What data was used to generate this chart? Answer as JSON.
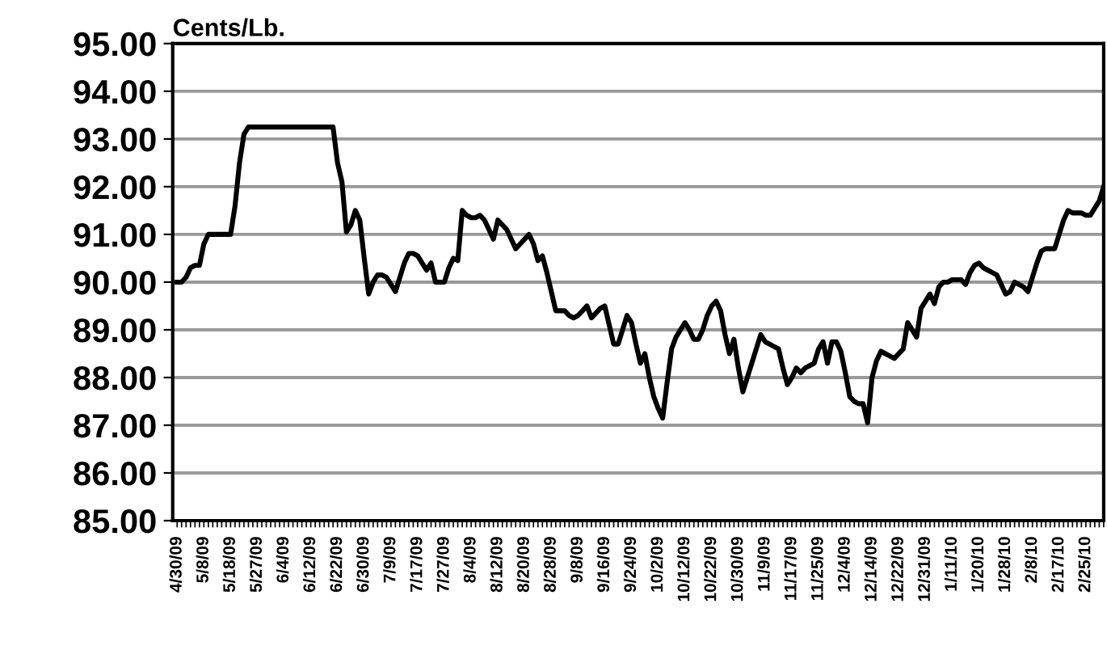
{
  "chart_data": {
    "type": "line",
    "ylabel": "Cents/Lb.",
    "categories": [
      "4/30/09",
      null,
      null,
      null,
      null,
      null,
      "5/8/09",
      null,
      null,
      null,
      null,
      null,
      "5/18/09",
      null,
      null,
      null,
      null,
      null,
      "5/27/09",
      null,
      null,
      null,
      null,
      null,
      "6/4/09",
      null,
      null,
      null,
      null,
      null,
      "6/12/09",
      null,
      null,
      null,
      null,
      null,
      "6/22/09",
      null,
      null,
      null,
      null,
      null,
      "6/30/09",
      null,
      null,
      null,
      null,
      null,
      "7/9/09",
      null,
      null,
      null,
      null,
      null,
      "7/17/09",
      null,
      null,
      null,
      null,
      null,
      "7/27/09",
      null,
      null,
      null,
      null,
      null,
      "8/4/09",
      null,
      null,
      null,
      null,
      null,
      "8/12/09",
      null,
      null,
      null,
      null,
      null,
      "8/20/09",
      null,
      null,
      null,
      null,
      null,
      "8/28/09",
      null,
      null,
      null,
      null,
      null,
      "9/8/09",
      null,
      null,
      null,
      null,
      null,
      "9/16/09",
      null,
      null,
      null,
      null,
      null,
      "9/24/09",
      null,
      null,
      null,
      null,
      null,
      "10/2/09",
      null,
      null,
      null,
      null,
      null,
      "10/12/09",
      null,
      null,
      null,
      null,
      null,
      "10/22/09",
      null,
      null,
      null,
      null,
      null,
      "10/30/09",
      null,
      null,
      null,
      null,
      null,
      "11/9/09",
      null,
      null,
      null,
      null,
      null,
      "11/17/09",
      null,
      null,
      null,
      null,
      null,
      "11/25/09",
      null,
      null,
      null,
      null,
      null,
      "12/4/09",
      null,
      null,
      null,
      null,
      null,
      "12/14/09",
      null,
      null,
      null,
      null,
      null,
      "12/22/09",
      null,
      null,
      null,
      null,
      null,
      "12/31/09",
      null,
      null,
      null,
      null,
      null,
      "1/11/10",
      null,
      null,
      null,
      null,
      null,
      "1/20/10",
      null,
      null,
      null,
      null,
      null,
      "1/28/10",
      null,
      null,
      null,
      null,
      null,
      "2/8/10",
      null,
      null,
      null,
      null,
      null,
      "2/17/10",
      null,
      null,
      null,
      null,
      null,
      "2/25/10",
      null,
      null,
      null,
      null
    ],
    "series": [
      {
        "color": "#000000",
        "values": [
          90.0,
          90.0,
          90.1,
          90.3,
          90.35,
          90.35,
          90.8,
          91.0,
          91.0,
          91.0,
          91.0,
          91.0,
          91.0,
          91.6,
          92.5,
          93.1,
          93.25,
          93.25,
          93.25,
          93.25,
          93.25,
          93.25,
          93.25,
          93.25,
          93.25,
          93.25,
          93.25,
          93.25,
          93.25,
          93.25,
          93.25,
          93.25,
          93.25,
          93.25,
          93.25,
          93.25,
          92.5,
          92.1,
          91.05,
          91.2,
          91.5,
          91.3,
          90.5,
          89.75,
          90.0,
          90.15,
          90.15,
          90.1,
          89.95,
          89.8,
          90.1,
          90.4,
          90.6,
          90.6,
          90.55,
          90.4,
          90.25,
          90.4,
          90.0,
          90.0,
          90.0,
          90.3,
          90.5,
          90.45,
          91.5,
          91.4,
          91.35,
          91.35,
          91.4,
          91.3,
          91.1,
          90.9,
          91.3,
          91.2,
          91.1,
          90.9,
          90.7,
          90.8,
          90.9,
          91.0,
          90.8,
          90.45,
          90.55,
          90.2,
          89.8,
          89.4,
          89.4,
          89.4,
          89.3,
          89.25,
          89.3,
          89.4,
          89.5,
          89.25,
          89.35,
          89.45,
          89.5,
          89.1,
          88.7,
          88.7,
          89.0,
          89.3,
          89.15,
          88.7,
          88.3,
          88.5,
          88.0,
          87.6,
          87.35,
          87.15,
          87.9,
          88.6,
          88.85,
          89.0,
          89.15,
          89.0,
          88.8,
          88.8,
          89.0,
          89.3,
          89.5,
          89.6,
          89.4,
          88.9,
          88.5,
          88.8,
          88.2,
          87.7,
          88.0,
          88.3,
          88.6,
          88.9,
          88.75,
          88.7,
          88.65,
          88.6,
          88.2,
          87.85,
          88.0,
          88.2,
          88.1,
          88.2,
          88.25,
          88.3,
          88.6,
          88.75,
          88.3,
          88.75,
          88.75,
          88.55,
          88.1,
          87.6,
          87.5,
          87.45,
          87.45,
          87.05,
          88.0,
          88.35,
          88.55,
          88.5,
          88.45,
          88.4,
          88.5,
          88.6,
          89.15,
          89.0,
          88.85,
          89.45,
          89.6,
          89.75,
          89.55,
          89.9,
          90.0,
          90.0,
          90.05,
          90.05,
          90.05,
          89.95,
          90.2,
          90.35,
          90.4,
          90.3,
          90.25,
          90.2,
          90.15,
          89.95,
          89.75,
          89.8,
          90.0,
          89.95,
          89.9,
          89.8,
          90.1,
          90.4,
          90.65,
          90.7,
          90.7,
          90.7,
          91.0,
          91.3,
          91.5,
          91.45,
          91.45,
          91.45,
          91.4,
          91.4,
          91.55,
          91.7,
          92.0
        ]
      }
    ],
    "ylim": [
      85,
      95
    ],
    "yticks": [
      {
        "value": 85,
        "label": "85.00"
      },
      {
        "value": 86,
        "label": "86.00"
      },
      {
        "value": 87,
        "label": "87.00"
      },
      {
        "value": 88,
        "label": "88.00"
      },
      {
        "value": 89,
        "label": "89.00"
      },
      {
        "value": 90,
        "label": "90.00"
      },
      {
        "value": 91,
        "label": "91.00"
      },
      {
        "value": 92,
        "label": "92.00"
      },
      {
        "value": 93,
        "label": "93.00"
      },
      {
        "value": 94,
        "label": "94.00"
      },
      {
        "value": 95,
        "label": "95.00"
      }
    ],
    "grid": "y",
    "marker": "none",
    "line_style": "solid"
  }
}
